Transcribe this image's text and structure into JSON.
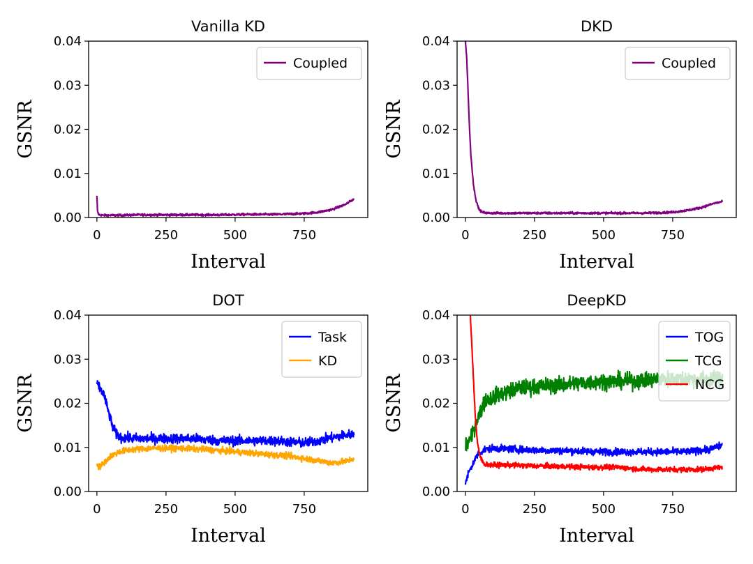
{
  "chart_data": [
    {
      "type": "line",
      "title": "Vanilla KD",
      "xlabel": "Interval",
      "ylabel": "GSNR",
      "xlim": [
        -30,
        980
      ],
      "ylim": [
        0,
        0.04
      ],
      "xticks": [
        "0",
        "250",
        "500",
        "750"
      ],
      "yticks": [
        "0.00",
        "0.01",
        "0.02",
        "0.03",
        "0.04"
      ],
      "legend_position": "top-right",
      "series": [
        {
          "name": "Coupled",
          "color": "#800080",
          "x": [
            0,
            2,
            5,
            10,
            20,
            40,
            80,
            150,
            250,
            350,
            450,
            550,
            650,
            750,
            800,
            850,
            880,
            900,
            915,
            930
          ],
          "y": [
            0.0048,
            0.0015,
            0.0008,
            0.0006,
            0.0005,
            0.0005,
            0.0005,
            0.0006,
            0.0006,
            0.0006,
            0.0006,
            0.0007,
            0.0007,
            0.0009,
            0.0012,
            0.0018,
            0.0025,
            0.003,
            0.0036,
            0.0042
          ],
          "noise": 0.00025
        }
      ]
    },
    {
      "type": "line",
      "title": "DKD",
      "xlabel": "Interval",
      "ylabel": "GSNR",
      "xlim": [
        -30,
        980
      ],
      "ylim": [
        0,
        0.04
      ],
      "xticks": [
        "0",
        "250",
        "500",
        "750"
      ],
      "yticks": [
        "0.00",
        "0.01",
        "0.02",
        "0.03",
        "0.04"
      ],
      "legend_position": "top-right",
      "series": [
        {
          "name": "Coupled",
          "color": "#800080",
          "x": [
            0,
            5,
            10,
            15,
            20,
            30,
            40,
            50,
            60,
            80,
            100,
            150,
            250,
            350,
            450,
            550,
            650,
            750,
            800,
            850,
            880,
            900,
            930
          ],
          "y": [
            0.04,
            0.036,
            0.028,
            0.02,
            0.014,
            0.007,
            0.0035,
            0.0018,
            0.0012,
            0.001,
            0.001,
            0.001,
            0.001,
            0.001,
            0.001,
            0.001,
            0.001,
            0.0012,
            0.0016,
            0.0022,
            0.0028,
            0.0032,
            0.0036
          ],
          "noise": 0.00025
        }
      ]
    },
    {
      "type": "line",
      "title": "DOT",
      "xlabel": "Interval",
      "ylabel": "GSNR",
      "xlim": [
        -30,
        980
      ],
      "ylim": [
        0,
        0.04
      ],
      "xticks": [
        "0",
        "250",
        "500",
        "750"
      ],
      "yticks": [
        "0.00",
        "0.01",
        "0.02",
        "0.03",
        "0.04"
      ],
      "legend_position": "top-right",
      "series": [
        {
          "name": "Task",
          "color": "#0000ff",
          "x": [
            0,
            10,
            25,
            40,
            55,
            70,
            90,
            150,
            250,
            350,
            450,
            550,
            650,
            750,
            800,
            850,
            900,
            930
          ],
          "y": [
            0.0245,
            0.0235,
            0.022,
            0.0185,
            0.015,
            0.013,
            0.0122,
            0.012,
            0.012,
            0.012,
            0.0115,
            0.0115,
            0.0115,
            0.011,
            0.0115,
            0.0122,
            0.0128,
            0.013
          ],
          "noise": 0.0011
        },
        {
          "name": "KD",
          "color": "#ffa500",
          "x": [
            0,
            10,
            25,
            50,
            80,
            120,
            200,
            300,
            400,
            500,
            600,
            700,
            780,
            850,
            900,
            930
          ],
          "y": [
            0.0062,
            0.0055,
            0.0065,
            0.008,
            0.009,
            0.0095,
            0.0098,
            0.0098,
            0.0095,
            0.009,
            0.0085,
            0.008,
            0.0072,
            0.0065,
            0.0068,
            0.0075
          ],
          "noise": 0.0007
        }
      ]
    },
    {
      "type": "line",
      "title": "DeepKD",
      "xlabel": "Interval",
      "ylabel": "GSNR",
      "xlim": [
        -30,
        980
      ],
      "ylim": [
        0,
        0.04
      ],
      "xticks": [
        "0",
        "250",
        "500",
        "750"
      ],
      "yticks": [
        "0.00",
        "0.01",
        "0.02",
        "0.03",
        "0.04"
      ],
      "legend_position": "top-right",
      "series": [
        {
          "name": "TOG",
          "color": "#0000ff",
          "x": [
            0,
            10,
            25,
            45,
            70,
            100,
            200,
            300,
            400,
            500,
            600,
            700,
            800,
            880,
            930
          ],
          "y": [
            0.0015,
            0.004,
            0.006,
            0.0085,
            0.0095,
            0.0098,
            0.0095,
            0.0093,
            0.0092,
            0.009,
            0.009,
            0.009,
            0.009,
            0.0095,
            0.0105
          ],
          "noise": 0.0008
        },
        {
          "name": "TCG",
          "color": "#008000",
          "x": [
            0,
            20,
            40,
            70,
            120,
            200,
            300,
            400,
            500,
            600,
            700,
            800,
            900,
            930
          ],
          "y": [
            0.0105,
            0.012,
            0.016,
            0.0205,
            0.022,
            0.0235,
            0.024,
            0.0245,
            0.025,
            0.025,
            0.0255,
            0.0255,
            0.0255,
            0.0255
          ],
          "noise": 0.0018
        },
        {
          "name": "NCG",
          "color": "#ff0000",
          "x": [
            18,
            22,
            28,
            35,
            42,
            50,
            60,
            70,
            90,
            150,
            250,
            350,
            450,
            550,
            650,
            750,
            850,
            930
          ],
          "y": [
            0.04,
            0.035,
            0.027,
            0.018,
            0.012,
            0.0085,
            0.007,
            0.0062,
            0.006,
            0.006,
            0.0058,
            0.0057,
            0.0055,
            0.0055,
            0.005,
            0.005,
            0.005,
            0.0055
          ],
          "noise": 0.0006
        }
      ]
    }
  ]
}
